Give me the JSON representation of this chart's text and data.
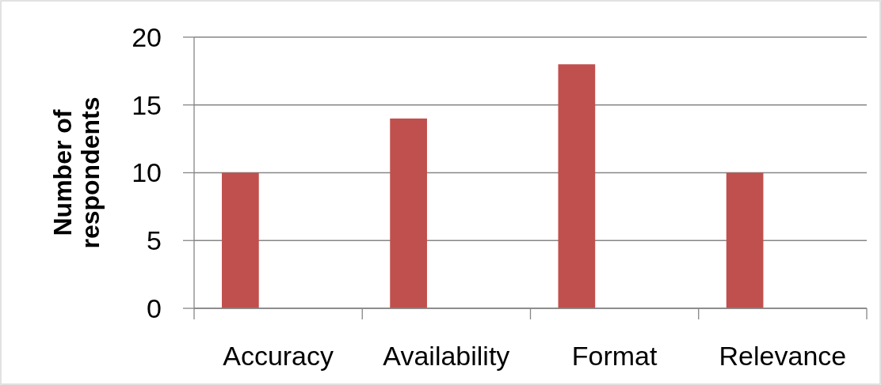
{
  "chart_data": {
    "type": "bar",
    "ylabel": "Number of respondents",
    "categories": [
      "Accuracy",
      "Availability",
      "Format",
      "Relevance"
    ],
    "values": [
      10,
      14,
      18,
      10
    ],
    "color": "#c0504d",
    "ylim": [
      0,
      20
    ],
    "yticks": [
      0,
      5,
      10,
      15,
      20
    ],
    "grid": "y"
  }
}
